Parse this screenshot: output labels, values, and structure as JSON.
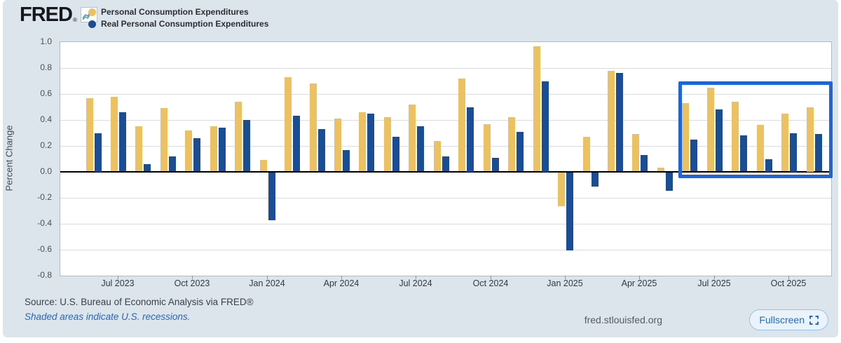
{
  "header": {
    "logo": "FRED",
    "registered_mark": "®",
    "legend": [
      {
        "label": "Personal Consumption Expenditures",
        "color": "#ebc162"
      },
      {
        "label": "Real Personal Consumption Expenditures",
        "color": "#1b4d94"
      }
    ]
  },
  "chart_data": {
    "type": "bar",
    "title": "",
    "xlabel": "",
    "ylabel": "Percent Change",
    "ylim": [
      -0.8,
      1.0
    ],
    "yticks": [
      1.0,
      0.8,
      0.6,
      0.4,
      0.2,
      0.0,
      -0.2,
      -0.4,
      -0.6,
      -0.8
    ],
    "grid": true,
    "legend_position": "top-left",
    "categories": [
      "Jun 2023",
      "Jul 2023",
      "Aug 2023",
      "Sep 2023",
      "Oct 2023",
      "Nov 2023",
      "Dec 2023",
      "Jan 2024",
      "Feb 2024",
      "Mar 2024",
      "Apr 2024",
      "May 2024",
      "Jun 2024",
      "Jul 2024",
      "Aug 2024",
      "Sep 2024",
      "Oct 2024",
      "Nov 2024",
      "Dec 2024",
      "Jan 2025",
      "Feb 2025",
      "Mar 2025",
      "Apr 2025",
      "May 2025",
      "Jun 2025",
      "Jul 2025",
      "Aug 2025",
      "Sep 2025",
      "Oct 2025",
      "Nov 2025"
    ],
    "x_tick_labels": [
      "Jul 2023",
      "Oct 2023",
      "Jan 2024",
      "Apr 2024",
      "Jul 2024",
      "Oct 2024",
      "Jan 2025",
      "Apr 2025",
      "Jul 2025",
      "Oct 2025"
    ],
    "series": [
      {
        "name": "Personal Consumption Expenditures",
        "color": "#ebc162",
        "values": [
          0.57,
          0.58,
          0.35,
          0.49,
          0.32,
          0.35,
          0.54,
          0.09,
          0.73,
          0.68,
          0.41,
          0.46,
          0.42,
          0.52,
          0.24,
          0.72,
          0.37,
          0.42,
          0.97,
          -0.26,
          0.27,
          0.78,
          0.29,
          0.03,
          0.53,
          0.65,
          0.54,
          0.36,
          0.45,
          0.5
        ]
      },
      {
        "name": "Real Personal Consumption Expenditures",
        "color": "#1b4d94",
        "values": [
          0.3,
          0.46,
          0.06,
          0.12,
          0.26,
          0.34,
          0.4,
          -0.37,
          0.43,
          0.33,
          0.17,
          0.45,
          0.27,
          0.35,
          0.12,
          0.5,
          0.11,
          0.31,
          0.7,
          -0.6,
          -0.11,
          0.76,
          0.13,
          -0.14,
          0.25,
          0.48,
          0.28,
          0.1,
          0.3,
          0.29
        ]
      }
    ],
    "highlight": {
      "from_category": "Jun 2025",
      "to_category": "Nov 2025",
      "top_value": 0.7,
      "bottom_value": -0.045,
      "color": "#2065d8"
    }
  },
  "footer": {
    "source": "Source: U.S. Bureau of Economic Analysis via FRED®",
    "recession_note": "Shaded areas indicate U.S. recessions.",
    "site": "fred.stlouisfed.org",
    "fullscreen_label": "Fullscreen"
  },
  "colors": {
    "background": "#dce4ec",
    "plot_background": "#ffffff",
    "gridline": "#d9dcdf",
    "zero_line": "#000000",
    "highlight_border": "#2065d8",
    "link_blue": "#2668bd",
    "fullscreen_blue": "#1e6cc7"
  }
}
